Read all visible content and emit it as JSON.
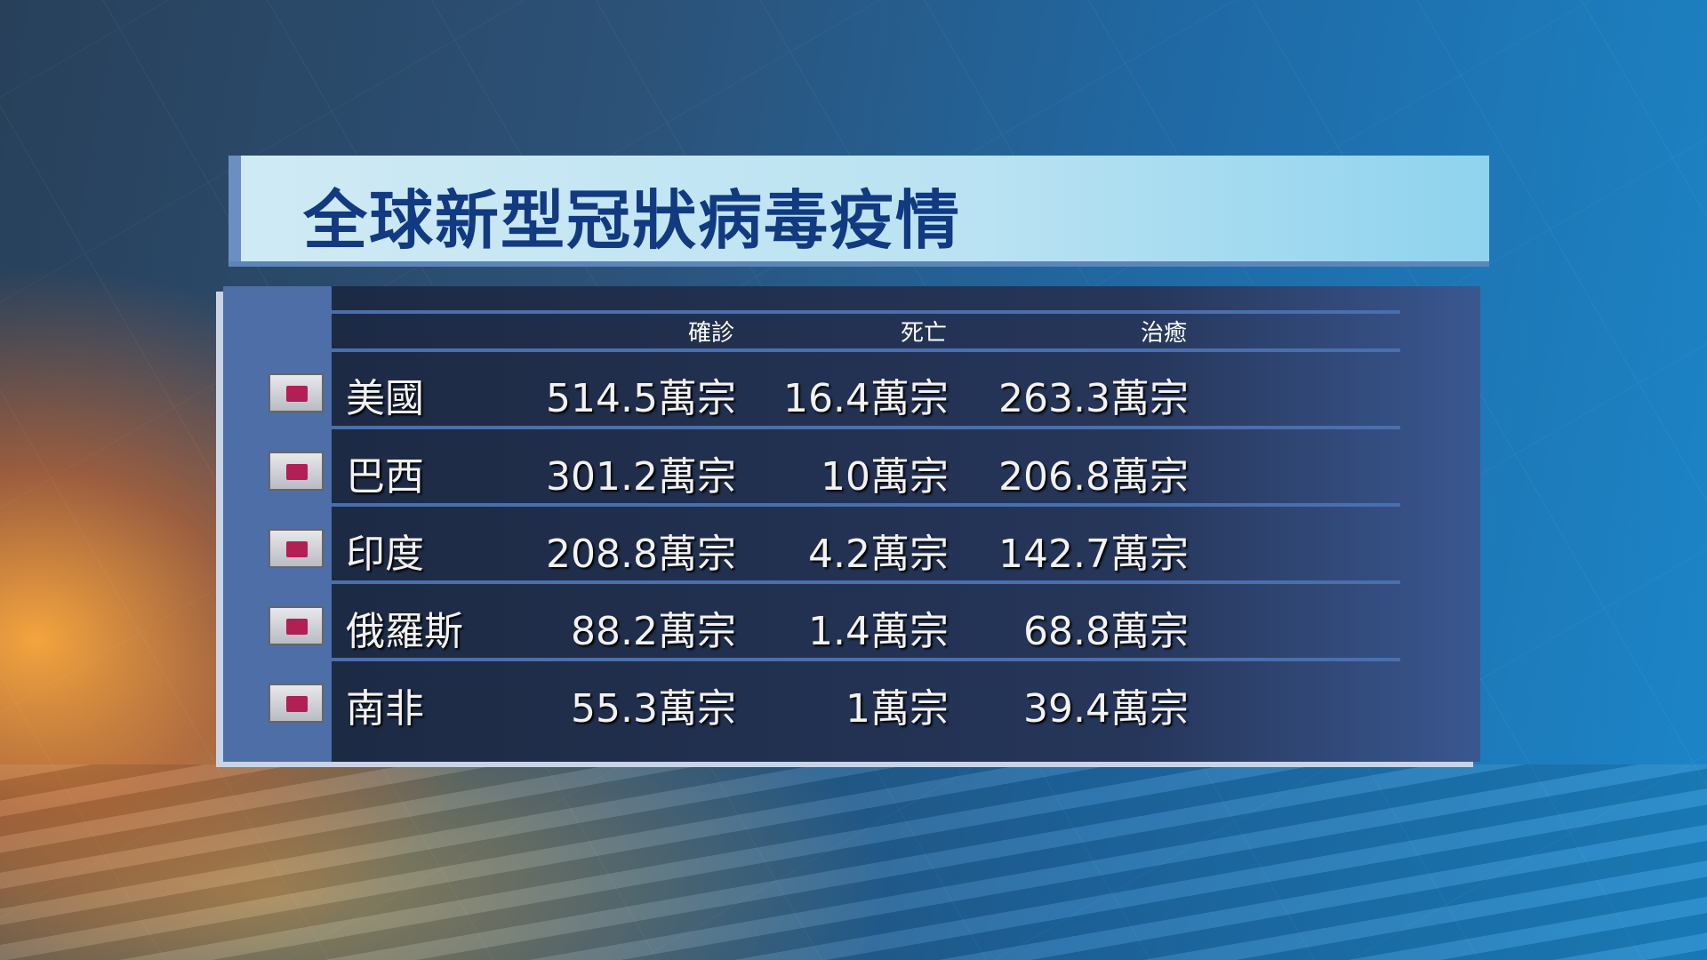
{
  "title": "全球新型冠狀病毒疫情",
  "headers": [
    "確診",
    "死亡",
    "治癒"
  ],
  "rows": [
    {
      "country": "美國",
      "confirmed": "514.5萬宗",
      "deaths": "16.4萬宗",
      "recovered": "263.3萬宗"
    },
    {
      "country": "巴西",
      "confirmed": "301.2萬宗",
      "deaths": "10萬宗",
      "recovered": "206.8萬宗"
    },
    {
      "country": "印度",
      "confirmed": "208.8萬宗",
      "deaths": "4.2萬宗",
      "recovered": "142.7萬宗"
    },
    {
      "country": "俄羅斯",
      "confirmed": "88.2萬宗",
      "deaths": "1.4萬宗",
      "recovered": "68.8萬宗"
    },
    {
      "country": "南非",
      "confirmed": "55.3萬宗",
      "deaths": "1萬宗",
      "recovered": "39.4萬宗"
    }
  ],
  "colors": {
    "title": "#123a80",
    "flag_marker": "#b21f55"
  }
}
